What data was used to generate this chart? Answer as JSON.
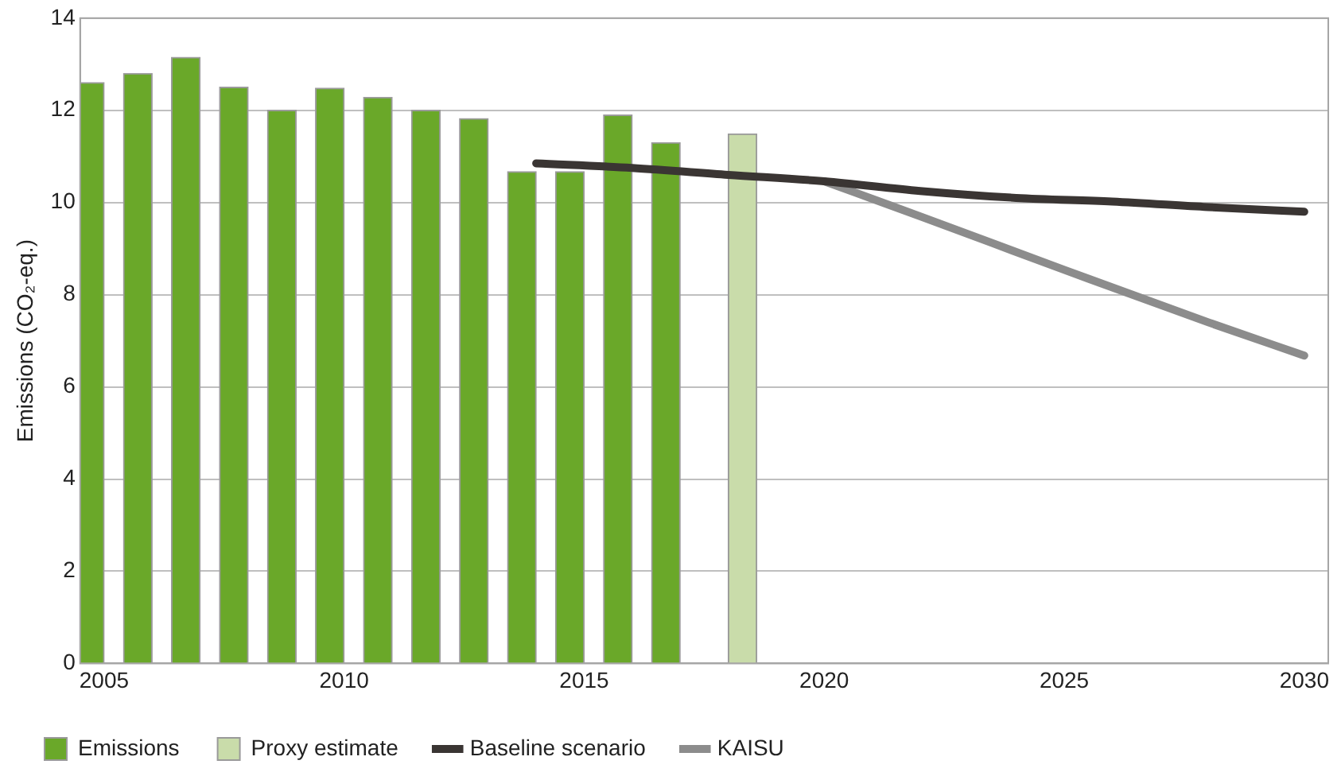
{
  "chart_data": {
    "type": "bar",
    "ylabel": "Emissions (CO₂-eq.)",
    "xlim": [
      2004.5,
      2030.5
    ],
    "xticks": [
      2005,
      2010,
      2015,
      2020,
      2025,
      2030
    ],
    "ylim": [
      0,
      14
    ],
    "yticks": [
      0,
      2,
      4,
      6,
      8,
      10,
      12,
      14
    ],
    "grid": "y",
    "legend": "bottom",
    "series": [
      {
        "name": "Emissions",
        "color": "#6aa829",
        "x": [
          2005,
          2006,
          2007,
          2008,
          2009,
          2010,
          2011,
          2012,
          2013,
          2014,
          2015,
          2016,
          2017
        ],
        "values": [
          12.6,
          12.8,
          13.15,
          12.5,
          12.0,
          12.48,
          12.28,
          12.0,
          11.82,
          10.67,
          10.67,
          11.9,
          11.3
        ]
      },
      {
        "name": "Proxy estimate",
        "color": "#c9dcaa",
        "x": [
          2018
        ],
        "values": [
          11.49
        ]
      },
      {
        "name": "Baseline scenario",
        "type": "line",
        "color": "#3a3533",
        "x": [
          2014,
          2016,
          2018,
          2020,
          2022,
          2024,
          2026,
          2028,
          2030
        ],
        "values": [
          10.85,
          10.75,
          10.6,
          10.46,
          10.25,
          10.1,
          10.02,
          9.9,
          9.8
        ]
      },
      {
        "name": "KAISU",
        "type": "line",
        "color": "#8c8c8c",
        "x": [
          2020,
          2022,
          2025,
          2028,
          2030
        ],
        "values": [
          10.46,
          9.7,
          8.54,
          7.4,
          6.68
        ]
      }
    ]
  }
}
